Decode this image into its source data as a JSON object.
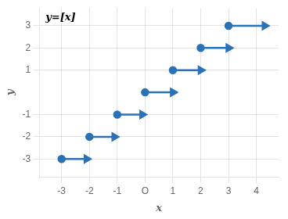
{
  "chart_data": {
    "type": "line",
    "xlabel": "x",
    "ylabel": "y",
    "annotation": "y=[x]",
    "color": "#2a72b5",
    "marker": "circle",
    "segments": [
      {
        "x_start": 0,
        "x_end": 1.0,
        "y": 0
      },
      {
        "x_start": 1,
        "x_end": 2.0,
        "y": 1
      },
      {
        "x_start": 2,
        "x_end": 3.0,
        "y": 2
      },
      {
        "x_start": 3,
        "x_end": 4.3,
        "y": 3
      },
      {
        "x_start": -1,
        "x_end": -0.1,
        "y": -1
      },
      {
        "x_start": -2,
        "x_end": -1.1,
        "y": -2
      },
      {
        "x_start": -3,
        "x_end": -2.1,
        "y": -3
      }
    ],
    "xlim": [
      -3.8,
      4.8
    ],
    "ylim": [
      -3.8,
      3.8
    ],
    "xticks": [
      -3,
      -2,
      -1,
      {
        "value": 0,
        "label": "O"
      },
      1,
      2,
      3,
      4
    ],
    "yticks": [
      -3,
      -2,
      -1,
      1,
      2,
      3
    ],
    "grid": true
  }
}
